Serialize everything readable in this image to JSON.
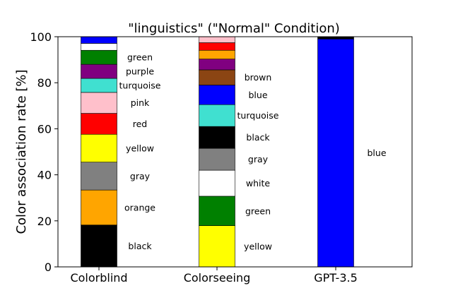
{
  "chart_data": {
    "type": "bar",
    "stacked": true,
    "title": "\"linguistics\" (\"Normal\" Condition)",
    "ylabel": "Color association rate [%]",
    "ylim": [
      0,
      100
    ],
    "yticks": [
      0,
      20,
      40,
      60,
      80,
      100
    ],
    "categories": [
      "Colorblind",
      "Colorseeing",
      "GPT-3.5"
    ],
    "grid": false,
    "stacks": [
      {
        "category": "Colorblind",
        "segments": [
          {
            "color": "#000000",
            "value": 18.2,
            "label": "black"
          },
          {
            "color": "#FFA500",
            "value": 15.2,
            "label": "orange"
          },
          {
            "color": "#808080",
            "value": 12.1,
            "label": "gray"
          },
          {
            "color": "#FFFF00",
            "value": 12.1,
            "label": "yellow"
          },
          {
            "color": "#FF0000",
            "value": 9.1,
            "label": "red"
          },
          {
            "color": "#FFC0CB",
            "value": 9.1,
            "label": "pink"
          },
          {
            "color": "#40E0D0",
            "value": 6.1,
            "label": "turquoise"
          },
          {
            "color": "#800080",
            "value": 6.1,
            "label": "purple"
          },
          {
            "color": "#008000",
            "value": 6.1,
            "label": "green"
          },
          {
            "color": "#FFFFFF",
            "value": 3.0,
            "label": ""
          },
          {
            "color": "#0000FF",
            "value": 2.9,
            "label": ""
          }
        ]
      },
      {
        "category": "Colorseeing",
        "segments": [
          {
            "color": "#FFFF00",
            "value": 17.9,
            "label": "yellow"
          },
          {
            "color": "#008000",
            "value": 12.8,
            "label": "green"
          },
          {
            "color": "#FFFFFF",
            "value": 11.3,
            "label": "white"
          },
          {
            "color": "#808080",
            "value": 9.5,
            "label": "gray"
          },
          {
            "color": "#000000",
            "value": 9.5,
            "label": "black"
          },
          {
            "color": "#40E0D0",
            "value": 9.5,
            "label": "turquoise"
          },
          {
            "color": "#0000FF",
            "value": 8.5,
            "label": "blue"
          },
          {
            "color": "#8B4513",
            "value": 6.6,
            "label": "brown"
          },
          {
            "color": "#800080",
            "value": 4.7,
            "label": ""
          },
          {
            "color": "#FFA500",
            "value": 3.8,
            "label": ""
          },
          {
            "color": "#FF0000",
            "value": 3.3,
            "label": ""
          },
          {
            "color": "#FFC0CB",
            "value": 2.6,
            "label": ""
          }
        ]
      },
      {
        "category": "GPT-3.5",
        "segments": [
          {
            "color": "#0000FF",
            "value": 99.0,
            "label": "blue"
          },
          {
            "color": "#000000",
            "value": 1.0,
            "label": ""
          }
        ]
      }
    ]
  }
}
